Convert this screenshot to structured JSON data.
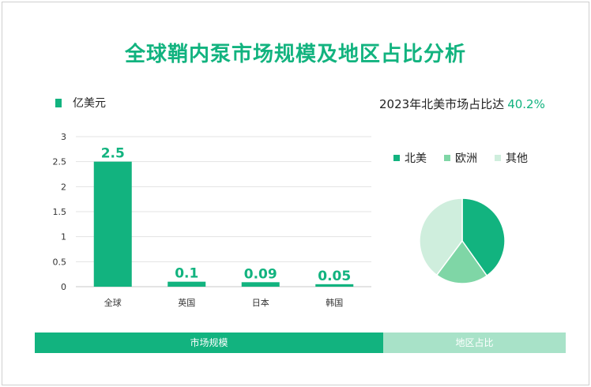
{
  "title": "全球鞘内泵市场规模及地区占比分析",
  "bar_legend": "亿美元",
  "right_title": {
    "text": "2023年北美市场占比达",
    "value": "40.2%"
  },
  "tabs": {
    "market": "市场规模",
    "region": "地区占比"
  },
  "colors": {
    "accent": "#12b37f",
    "na": "#12b37f",
    "eu": "#7fd6a6",
    "other": "#cfeedd"
  },
  "chart_data": [
    {
      "type": "bar",
      "title": "",
      "categories": [
        "全球",
        "英国",
        "日本",
        "韩国"
      ],
      "values": [
        2.5,
        0.1,
        0.09,
        0.05
      ],
      "value_labels": [
        "2.5",
        "0.1",
        "0.09",
        "0.05"
      ],
      "yticks": [
        "0",
        "0.5",
        "1",
        "1.5",
        "2",
        "2.5",
        "3"
      ],
      "ylim": [
        0,
        3
      ],
      "ylabel": "亿美元",
      "grid": true
    },
    {
      "type": "pie",
      "title": "2023年北美市场占比达 40.2%",
      "labels": [
        "北美",
        "欧洲",
        "其他"
      ],
      "values": [
        40.2,
        20.0,
        39.8
      ]
    }
  ]
}
